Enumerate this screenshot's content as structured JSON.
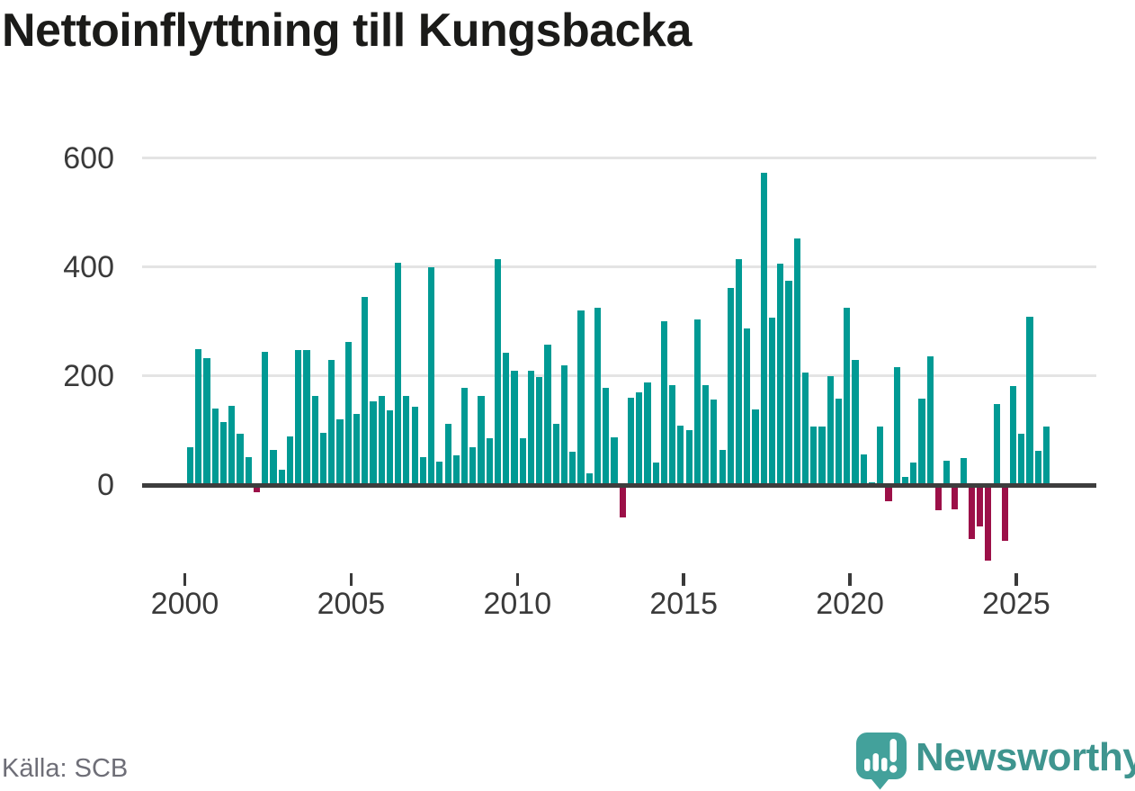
{
  "title": "Nettoinflyttning till Kungsbacka",
  "source_note": "Källa: SCB",
  "brand": {
    "name": "Newsworthy",
    "icon": "map-pin-bar-chart-exclamation-icon"
  },
  "colors": {
    "positive_bar": "#009a94",
    "negative_bar": "#9c1048",
    "gridline": "#e4e4e4",
    "zero_line": "#3d3d3d",
    "axis_text": "#3a3a3a",
    "tick_mark": "#3a3a3a",
    "title_text": "#1b1b19",
    "source_text": "#6e6e77",
    "brand_badge": "#43a19b",
    "brand_text": "#3f958f"
  },
  "chart_data": {
    "type": "bar",
    "title": "Nettoinflyttning till Kungsbacka",
    "period": "quarterly",
    "start_year": 2000,
    "quarters_per_year": 4,
    "x_tick_years": [
      2000,
      2005,
      2010,
      2015,
      2020,
      2025
    ],
    "y_ticks": [
      0,
      200,
      400,
      600
    ],
    "ylim": [
      -160,
      640
    ],
    "grid": "horizontal",
    "legend": "none",
    "values": [
      70,
      250,
      232,
      141,
      116,
      145,
      94,
      52,
      -13,
      244,
      65,
      28,
      89,
      247,
      247,
      163,
      95,
      229,
      120,
      262,
      130,
      345,
      153,
      163,
      137,
      408,
      163,
      143,
      51,
      400,
      43,
      112,
      54,
      179,
      69,
      163,
      86,
      414,
      242,
      210,
      86,
      210,
      198,
      257,
      112,
      219,
      61,
      320,
      21,
      325,
      179,
      87,
      -59,
      160,
      170,
      189,
      42,
      300,
      184,
      109,
      101,
      303,
      184,
      157,
      64,
      362,
      414,
      288,
      139,
      572,
      307,
      406,
      375,
      452,
      207,
      107,
      108,
      200,
      158,
      325,
      230,
      56,
      5,
      108,
      -29,
      216,
      15,
      42,
      158,
      236,
      -47,
      44,
      -45,
      49,
      -99,
      -76,
      -138,
      148,
      -103,
      182,
      94,
      308,
      63,
      108
    ]
  }
}
